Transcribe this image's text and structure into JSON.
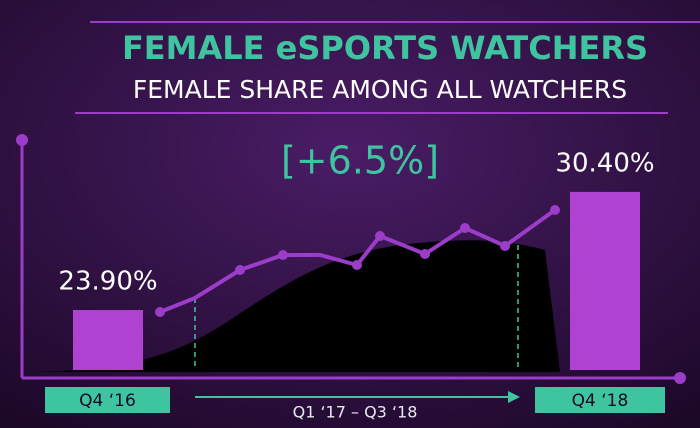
{
  "chart_data": {
    "type": "bar",
    "title": "FEMALE eSPORTS WATCHERS",
    "subtitle": "FEMALE SHARE AMONG ALL WATCHERS",
    "annotation": "[+6.5%]",
    "range_label": "Q1 ‘17 – Q3 ‘18",
    "categories": [
      "Q4 ‘16",
      "Q4 ‘18"
    ],
    "values": [
      23.9,
      30.4
    ],
    "value_labels": [
      "23.90%",
      "30.40%"
    ],
    "color": "#b042d2",
    "ylim": [
      20.6,
      31
    ]
  }
}
